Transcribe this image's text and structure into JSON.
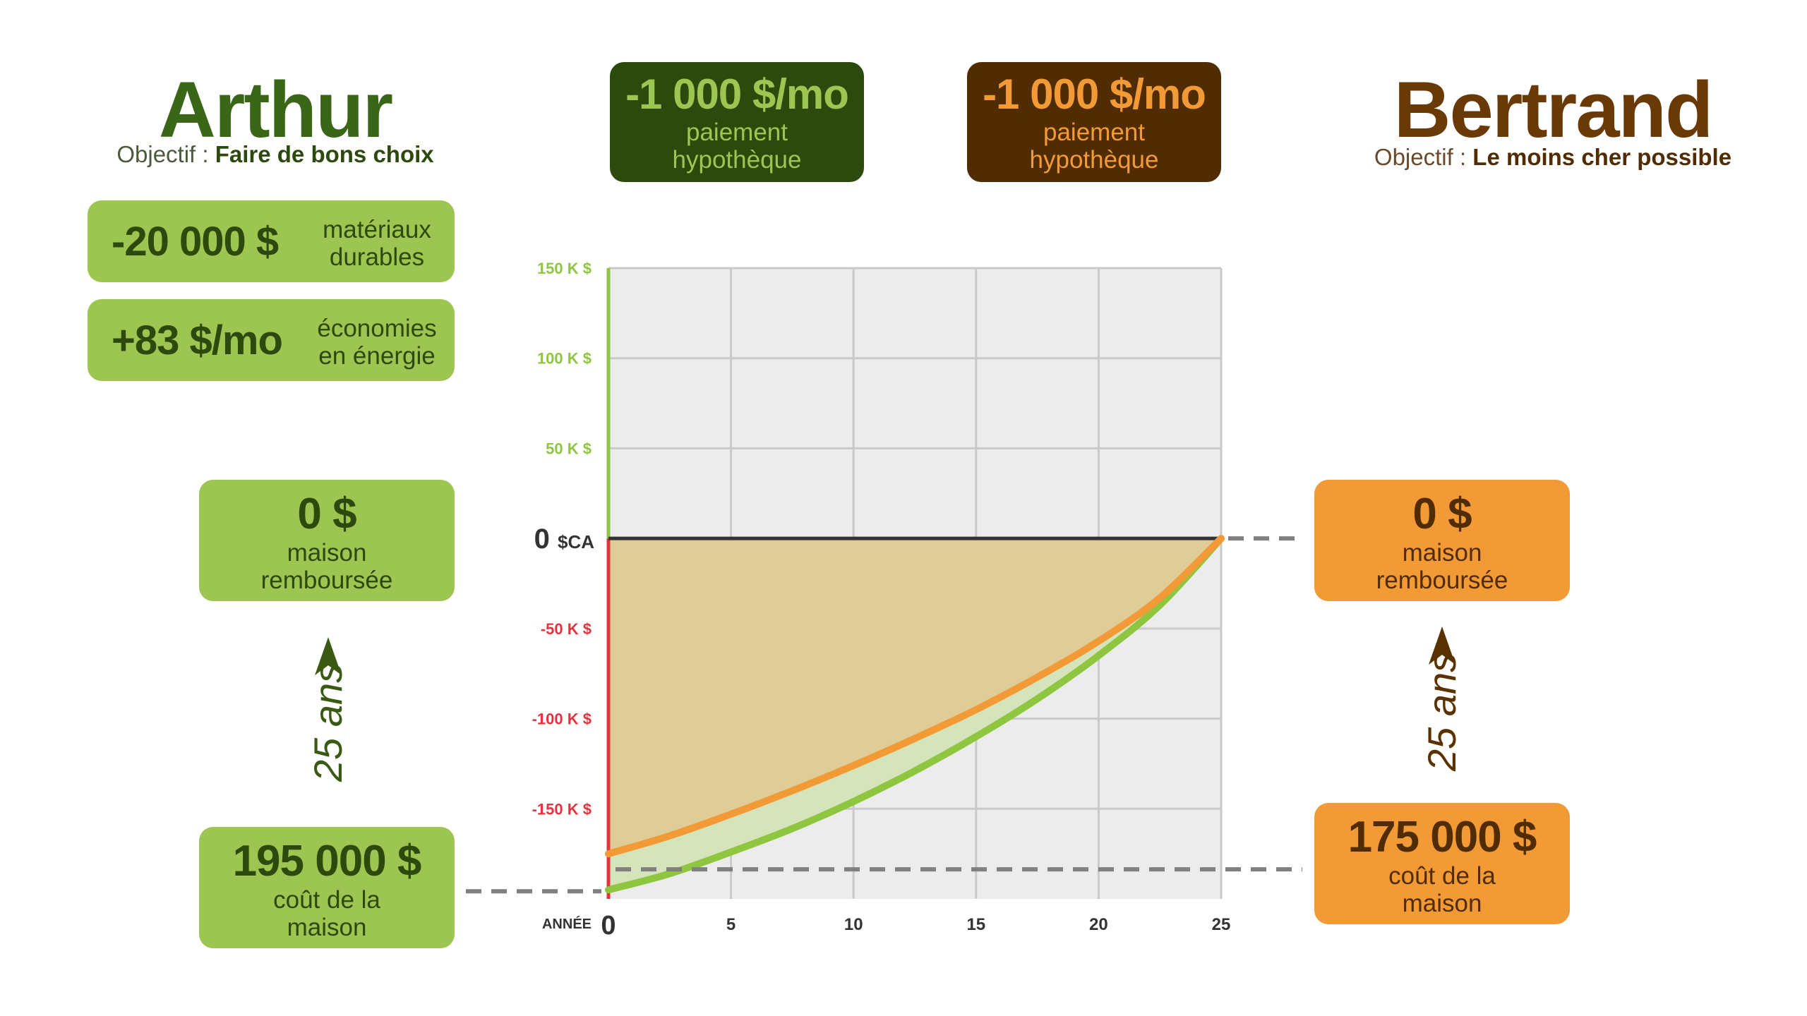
{
  "arthur": {
    "name": "Arthur",
    "goal_prefix": "Objectif :",
    "goal": "Faire de bons choix",
    "materials_value": "-20 000 $",
    "materials_label_1": "matériaux",
    "materials_label_2": "durables",
    "savings_value": "+83 $/mo",
    "savings_label_1": "économies",
    "savings_label_2": "en énergie",
    "paid_value": "0 $",
    "paid_label_1": "maison",
    "paid_label_2": "remboursée",
    "years": "25 ans",
    "cost_value": "195 000 $",
    "cost_label_1": "coût de la",
    "cost_label_2": "maison",
    "payment_value": "-1 000 $/mo",
    "payment_label_1": "paiement",
    "payment_label_2": "hypothèque"
  },
  "bertrand": {
    "name": "Bertrand",
    "goal_prefix": "Objectif :",
    "goal": "Le moins cher possible",
    "paid_value": "0 $",
    "paid_label_1": "maison",
    "paid_label_2": "remboursée",
    "years": "25 ans",
    "cost_value": "175 000 $",
    "cost_label_1": "coût de la",
    "cost_label_2": "maison",
    "payment_value": "-1 000 $/mo",
    "payment_label_1": "paiement",
    "payment_label_2": "hypothèque"
  },
  "colors": {
    "arthur_dark": "#2b4a0c",
    "arthur_title": "#3a6618",
    "arthur_light": "#9dc551",
    "bertrand_dark": "#512c00",
    "bertrand_title": "#6a3a06",
    "bertrand_light": "#f29a35",
    "axis_negative": "#e8323c",
    "axis_positive": "#8ec63f"
  },
  "chart_data": {
    "type": "line",
    "xlabel": "ANNÉE",
    "y_unit": "$CA",
    "xlim": [
      0,
      25
    ],
    "ylim": [
      -200000,
      150000
    ],
    "x_ticks": [
      0,
      5,
      10,
      15,
      20,
      25
    ],
    "y_ticks": [
      {
        "value": 150000,
        "label": "150 K $"
      },
      {
        "value": 100000,
        "label": "100 K $"
      },
      {
        "value": 50000,
        "label": "50 K $"
      },
      {
        "value": 0,
        "label": "0"
      },
      {
        "value": -50000,
        "label": "-50 K $"
      },
      {
        "value": -100000,
        "label": "-100 K $"
      },
      {
        "value": -150000,
        "label": "-150 K $"
      }
    ],
    "grid": true,
    "series": [
      {
        "color": "#f29a35",
        "x": [
          0,
          2.5,
          5,
          7.5,
          10,
          12.5,
          15,
          17.5,
          20,
          22.5,
          25
        ],
        "y": [
          -175000,
          -165000,
          -153000,
          -140000,
          -126000,
          -111000,
          -95000,
          -77000,
          -57000,
          -33000,
          0
        ]
      },
      {
        "color": "#8ec63f",
        "x": [
          0,
          2.5,
          5,
          7.5,
          10,
          12.5,
          15,
          17.5,
          20,
          22.5,
          25
        ],
        "y": [
          -195000,
          -186000,
          -174000,
          -161000,
          -146000,
          -129000,
          -110000,
          -89000,
          -65000,
          -37000,
          0
        ]
      }
    ]
  }
}
